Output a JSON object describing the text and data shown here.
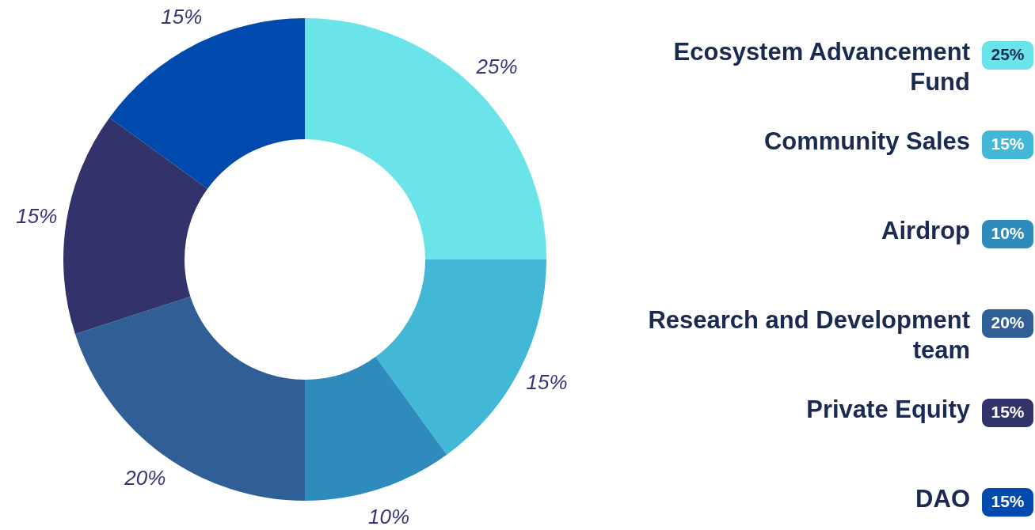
{
  "chart_data": {
    "type": "donut",
    "categories": [
      "Ecosystem Advancement Fund",
      "Community Sales",
      "Airdrop",
      "Research and Development team",
      "Private Equity",
      "DAO"
    ],
    "values": [
      25,
      15,
      10,
      20,
      15,
      15
    ],
    "value_labels": [
      "25%",
      "15%",
      "10%",
      "20%",
      "15%",
      "15%"
    ],
    "colors": [
      "#6ae4e8",
      "#42b8d6",
      "#2e8bbb",
      "#2f5f96",
      "#32336b",
      "#004aad"
    ],
    "legend": "right"
  }
}
